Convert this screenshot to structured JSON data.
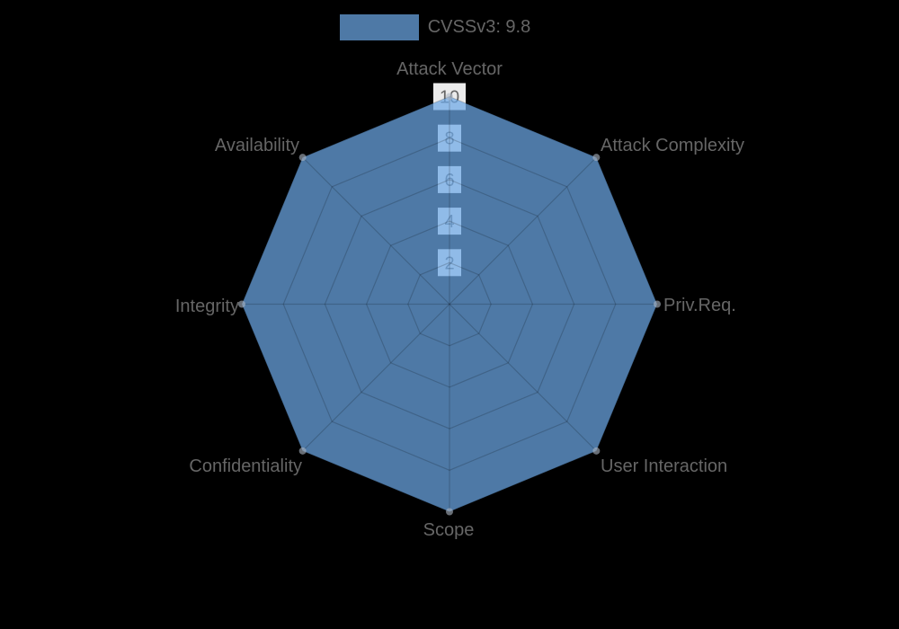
{
  "page": {
    "background_color": "#000000"
  },
  "legend": {
    "label": "CVSSv3: 9.8",
    "swatch_color": "#4e79a6",
    "text_color": "#666666",
    "position": "top"
  },
  "chart_data": {
    "type": "radar",
    "title": "CVSSv3: 9.8",
    "categories": [
      "Attack Vector",
      "Attack Complexity",
      "Priv.Req.",
      "User Interaction",
      "Scope",
      "Confidentiality",
      "Integrity",
      "Availability"
    ],
    "series": [
      {
        "name": "CVSSv3: 9.8",
        "values": [
          10,
          10,
          10,
          10,
          10,
          10,
          10,
          10
        ]
      }
    ],
    "scale": {
      "min": 0,
      "max": 10,
      "tick_step": 2,
      "ticks": [
        2,
        4,
        6,
        8,
        10
      ]
    },
    "grid": "on",
    "legend_position": "top",
    "colors": {
      "fill_rgba": "rgba(108,168,230,0.72)",
      "fill_flat_on_black": "#4e79a6",
      "grid_line_rgba": "rgba(0,0,0,0.18)",
      "axis_label": "#666666",
      "tick_text": "#666666",
      "tick_backdrop": "#ffffff",
      "point_marker_rgba": "rgba(173,184,197,0.6)"
    }
  }
}
